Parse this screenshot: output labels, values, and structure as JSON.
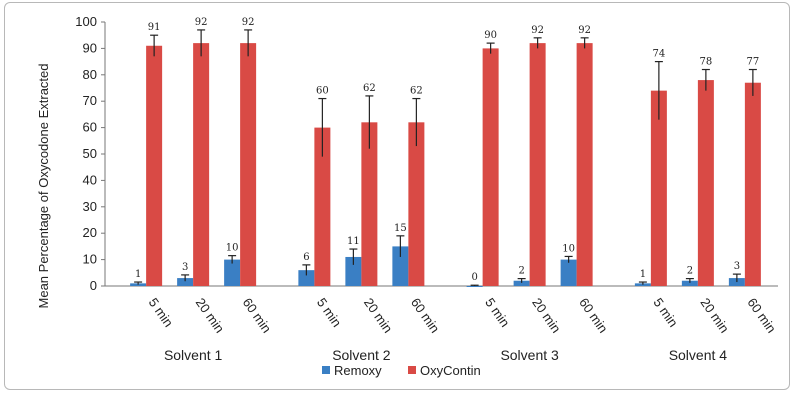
{
  "chart_data": {
    "type": "bar",
    "title": "",
    "xlabel": "",
    "ylabel": "Mean Percentage of Oxycodone Extracted",
    "ylim": [
      0,
      100
    ],
    "yticks": [
      0,
      10,
      20,
      30,
      40,
      50,
      60,
      70,
      80,
      90,
      100
    ],
    "grid": false,
    "legend_position": "bottom",
    "groups": [
      {
        "label": "Solvent 1",
        "categories": [
          "5 min",
          "20 min",
          "60 min"
        ]
      },
      {
        "label": "Solvent 2",
        "categories": [
          "5 min",
          "20 min",
          "60 min"
        ]
      },
      {
        "label": "Solvent 3",
        "categories": [
          "5 min",
          "20 min",
          "60 min"
        ]
      },
      {
        "label": "Solvent 4",
        "categories": [
          "5 min",
          "20 min",
          "60 min"
        ]
      }
    ],
    "series": [
      {
        "name": "Remoxy",
        "color": "#3a7fc4",
        "values": [
          1,
          3,
          10,
          6,
          11,
          15,
          0,
          2,
          10,
          1,
          2,
          3
        ],
        "errors": [
          0.5,
          1.2,
          1.5,
          2,
          3,
          4,
          0.3,
          0.8,
          1.2,
          0.5,
          0.8,
          1.5
        ],
        "labels": [
          "1",
          "3",
          "10",
          "6",
          "11",
          "15",
          "0",
          "2",
          "10",
          "1",
          "2",
          "3"
        ]
      },
      {
        "name": "OxyContin",
        "color": "#d94a45",
        "values": [
          91,
          92,
          92,
          60,
          62,
          62,
          90,
          92,
          92,
          74,
          78,
          77
        ],
        "errors": [
          4,
          5,
          5,
          11,
          10,
          9,
          2,
          2,
          2,
          11,
          4,
          5
        ],
        "labels": [
          "91",
          "92",
          "92",
          "60",
          "62",
          "62",
          "90",
          "92",
          "92",
          "74",
          "78",
          "77"
        ]
      }
    ]
  }
}
